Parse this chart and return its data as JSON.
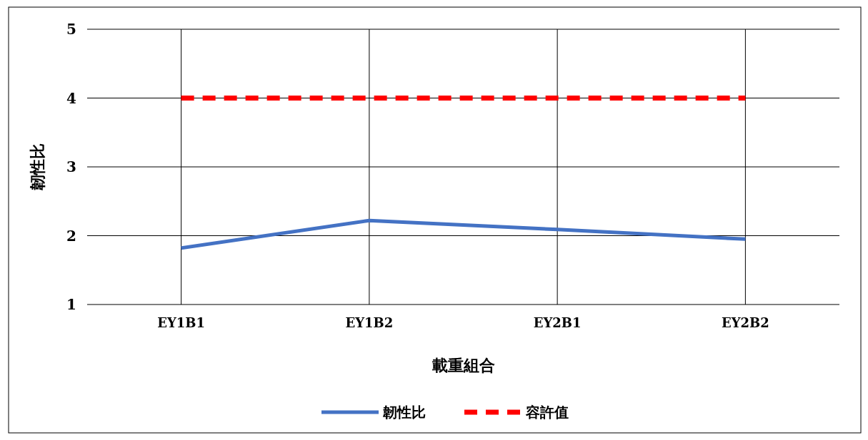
{
  "chart_data": {
    "type": "line",
    "xlabel": "載重組合",
    "ylabel": "韌性比",
    "categories": [
      "EY1B1",
      "EY1B2",
      "EY2B1",
      "EY2B2"
    ],
    "series": [
      {
        "name": "韌性比",
        "color": "#4472c4",
        "values": [
          1.82,
          2.22,
          2.09,
          1.95
        ],
        "line_style": "solid"
      },
      {
        "name": "容許值",
        "color": "#ff0000",
        "values": [
          4,
          4,
          4,
          4
        ],
        "line_style": "dashed"
      }
    ],
    "ylim": [
      1,
      5
    ],
    "yticks": [
      1,
      2,
      3,
      4,
      5
    ],
    "grid": true,
    "legend": "bottom",
    "marker": "none"
  }
}
